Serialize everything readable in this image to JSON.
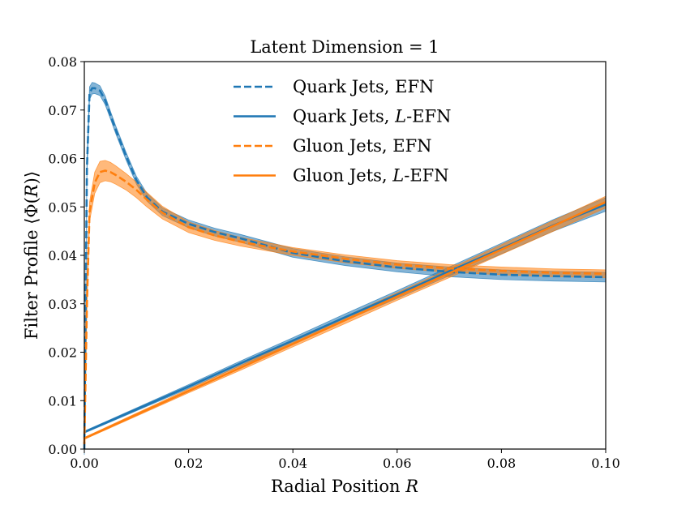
{
  "chart_data": {
    "type": "line",
    "title": "Latent Dimension = 1",
    "xlabel": "Radial Position R",
    "ylabel": "Filter Profile ⟨Φ(R)⟩",
    "xlim": [
      0.0,
      0.1
    ],
    "ylim": [
      0.0,
      0.08
    ],
    "xticks": [
      0.0,
      0.02,
      0.04,
      0.06,
      0.08,
      0.1
    ],
    "xtick_labels": [
      "0.00",
      "0.02",
      "0.04",
      "0.06",
      "0.08",
      "0.10"
    ],
    "yticks": [
      0.0,
      0.01,
      0.02,
      0.03,
      0.04,
      0.05,
      0.06,
      0.07,
      0.08
    ],
    "ytick_labels": [
      "0.00",
      "0.01",
      "0.02",
      "0.03",
      "0.04",
      "0.05",
      "0.06",
      "0.07",
      "0.08"
    ],
    "grid": false,
    "legend_position": "top-center",
    "colors": {
      "quark": "#1f77b4",
      "gluon": "#ff7f0e"
    },
    "series": [
      {
        "name": "Quark Jets, EFN",
        "color": "#1f77b4",
        "dash": true,
        "x": [
          0.0,
          0.0005,
          0.001,
          0.0015,
          0.002,
          0.003,
          0.004,
          0.005,
          0.006,
          0.008,
          0.01,
          0.012,
          0.015,
          0.02,
          0.025,
          0.03,
          0.04,
          0.05,
          0.06,
          0.07,
          0.08,
          0.09,
          0.1
        ],
        "y": [
          0.0,
          0.058,
          0.0735,
          0.0745,
          0.0745,
          0.074,
          0.072,
          0.069,
          0.066,
          0.0605,
          0.0555,
          0.052,
          0.049,
          0.0465,
          0.0448,
          0.0435,
          0.0405,
          0.0388,
          0.0375,
          0.0366,
          0.036,
          0.0357,
          0.0355
        ],
        "band": [
          0.0012,
          0.0015,
          0.0013,
          0.0012,
          0.0011,
          0.001,
          0.0009,
          0.0008,
          0.0008,
          0.0008,
          0.0008,
          0.0008,
          0.0008,
          0.0008,
          0.0008,
          0.0008,
          0.0009,
          0.0009,
          0.0009,
          0.001,
          0.001,
          0.001,
          0.001
        ]
      },
      {
        "name": "Quark Jets, L-EFN",
        "color": "#1f77b4",
        "dash": false,
        "x": [
          0.0,
          0.01,
          0.02,
          0.03,
          0.04,
          0.05,
          0.06,
          0.07,
          0.08,
          0.09,
          0.1
        ],
        "y": [
          0.0035,
          0.0082,
          0.0129,
          0.0177,
          0.0224,
          0.0272,
          0.0319,
          0.0367,
          0.0414,
          0.0462,
          0.0505
        ],
        "band": [
          0.0002,
          0.0003,
          0.0004,
          0.0005,
          0.0006,
          0.0007,
          0.0008,
          0.0009,
          0.0011,
          0.0012,
          0.0014
        ]
      },
      {
        "name": "Gluon Jets, EFN",
        "color": "#ff7f0e",
        "dash": true,
        "x": [
          0.0,
          0.0005,
          0.001,
          0.002,
          0.003,
          0.004,
          0.005,
          0.006,
          0.008,
          0.01,
          0.012,
          0.015,
          0.02,
          0.025,
          0.03,
          0.04,
          0.05,
          0.06,
          0.07,
          0.08,
          0.09,
          0.1
        ],
        "y": [
          0.001,
          0.03,
          0.049,
          0.055,
          0.0572,
          0.0575,
          0.0572,
          0.0566,
          0.0552,
          0.0535,
          0.0515,
          0.0488,
          0.0458,
          0.0441,
          0.0428,
          0.0408,
          0.0393,
          0.0381,
          0.0373,
          0.0368,
          0.0364,
          0.0362
        ],
        "band": [
          0.0008,
          0.0015,
          0.002,
          0.0022,
          0.0022,
          0.0021,
          0.002,
          0.0019,
          0.0017,
          0.0016,
          0.0015,
          0.0013,
          0.0011,
          0.001,
          0.0009,
          0.0008,
          0.0008,
          0.0008,
          0.0008,
          0.0008,
          0.0008,
          0.0008
        ]
      },
      {
        "name": "Gluon Jets, L-EFN",
        "color": "#ff7f0e",
        "dash": false,
        "x": [
          0.0,
          0.01,
          0.02,
          0.03,
          0.04,
          0.05,
          0.06,
          0.07,
          0.08,
          0.09,
          0.1
        ],
        "y": [
          0.0022,
          0.0071,
          0.012,
          0.0168,
          0.0217,
          0.0266,
          0.0315,
          0.0363,
          0.0412,
          0.0461,
          0.051
        ],
        "band": [
          0.0002,
          0.0003,
          0.0004,
          0.0005,
          0.0006,
          0.0007,
          0.0008,
          0.0009,
          0.001,
          0.0011,
          0.0012
        ]
      }
    ],
    "legend": [
      {
        "label": "Quark Jets, EFN",
        "prefix": "",
        "italic": "",
        "suffix": "",
        "color": "#1f77b4",
        "dash": true
      },
      {
        "label": "Quark Jets, L-EFN",
        "prefix": "Quark Jets, ",
        "italic": "L",
        "suffix": "-EFN",
        "color": "#1f77b4",
        "dash": false
      },
      {
        "label": "Gluon Jets, EFN",
        "prefix": "",
        "italic": "",
        "suffix": "",
        "color": "#ff7f0e",
        "dash": true
      },
      {
        "label": "Gluon Jets, L-EFN",
        "prefix": "Gluon Jets, ",
        "italic": "L",
        "suffix": "-EFN",
        "color": "#ff7f0e",
        "dash": false
      }
    ]
  }
}
